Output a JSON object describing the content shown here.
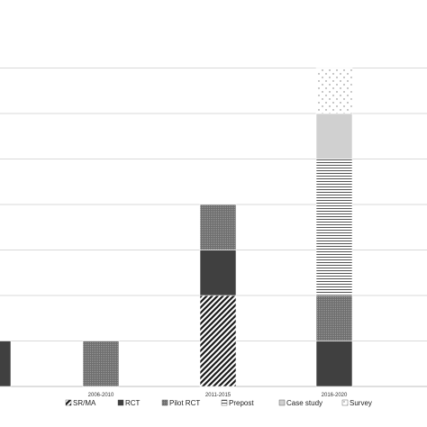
{
  "chart_data": {
    "type": "bar",
    "stacked": true,
    "categories": [
      "",
      "2006-2010",
      "2011-2015",
      "2016-2020"
    ],
    "series": [
      {
        "name": "SR/MA",
        "values": [
          0,
          0,
          2,
          0
        ],
        "pattern": "diag",
        "color": "#1a1a1a"
      },
      {
        "name": "RCT",
        "values": [
          1,
          0,
          1,
          1
        ],
        "pattern": "solid",
        "color": "#404040"
      },
      {
        "name": "Pilot RCT",
        "values": [
          0,
          1,
          1,
          1
        ],
        "pattern": "dots",
        "color": "#7a7a7a"
      },
      {
        "name": "Prepost",
        "values": [
          0,
          0,
          0,
          3
        ],
        "pattern": "hlines",
        "color": "#555555"
      },
      {
        "name": "Case study",
        "values": [
          0,
          0,
          0,
          1
        ],
        "pattern": "solid",
        "color": "#d0d0d0"
      },
      {
        "name": "Survey",
        "values": [
          0,
          0,
          0,
          1
        ],
        "pattern": "sparsedots",
        "color": "#888888"
      }
    ],
    "ylim": [
      0,
      7
    ],
    "grid": true,
    "legend_position": "bottom",
    "title": "",
    "xlabel": "",
    "ylabel": ""
  }
}
